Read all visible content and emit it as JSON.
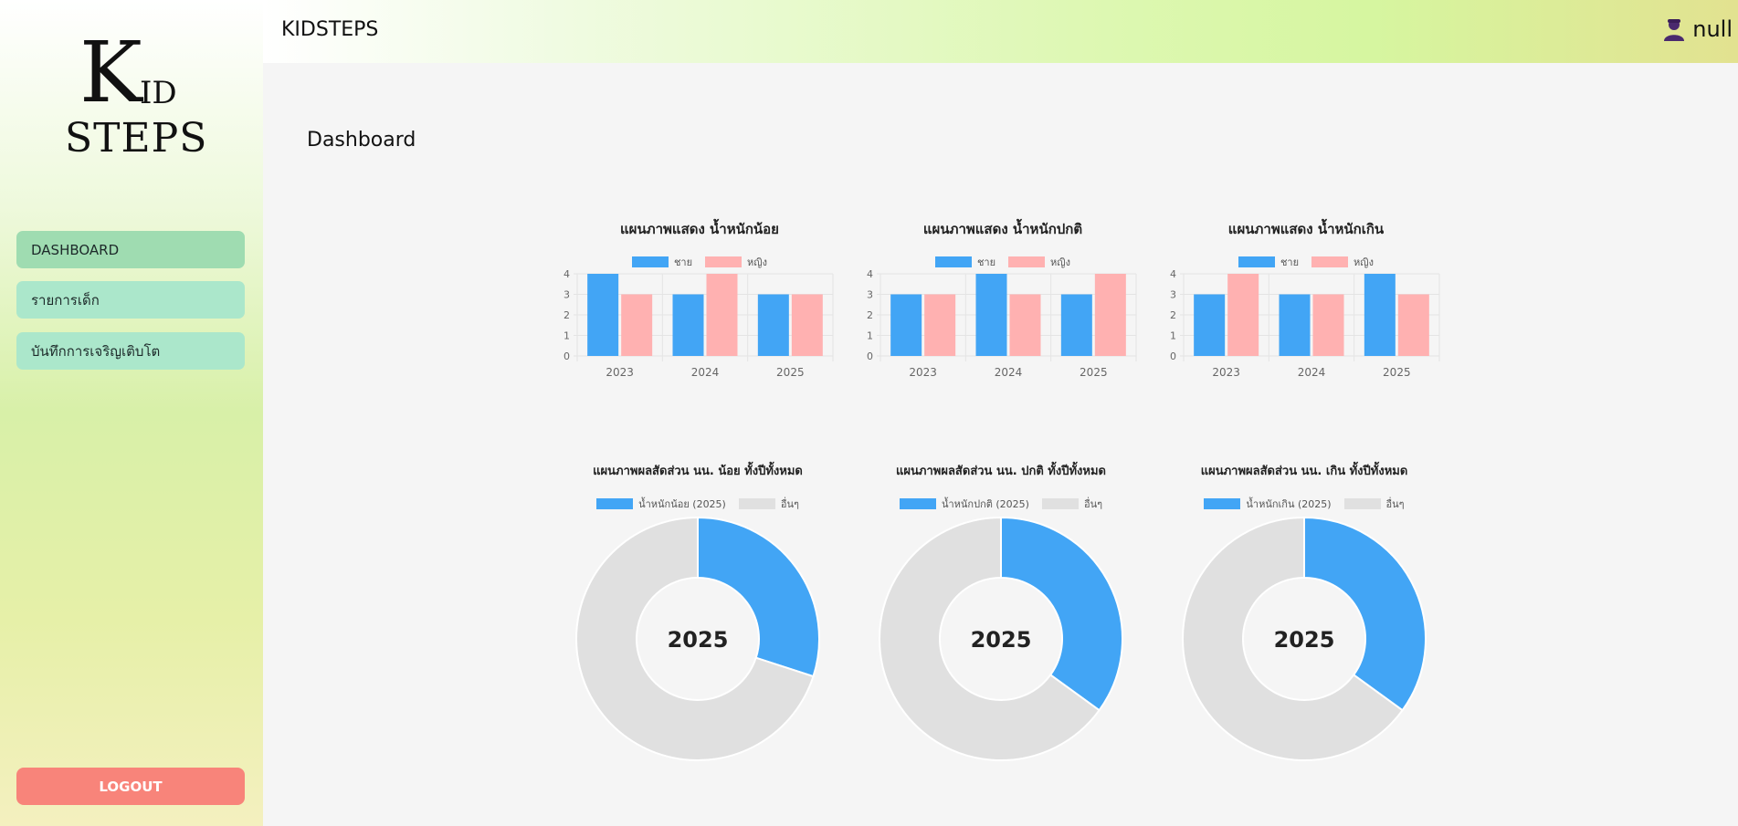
{
  "sidebar": {
    "logo": {
      "line1_big": "K",
      "line1_small": "ID",
      "line2": "STEPS"
    },
    "items": [
      {
        "label": "DASHBOARD",
        "active": true
      },
      {
        "label": "รายการเด็ก",
        "active": false
      },
      {
        "label": "บันทึกการเจริญเติบโต",
        "active": false
      }
    ],
    "logout_label": "LOGOUT"
  },
  "header": {
    "brand": "KIDSTEPS",
    "user_icon": "user-icon",
    "username": "null"
  },
  "main": {
    "title": "Dashboard"
  },
  "colors": {
    "blue": "#42a5f5",
    "pink": "#ffb1b1",
    "grey": "#e0e0e0"
  },
  "chart_data": [
    {
      "type": "bar",
      "title": "แผนภาพแสดง น้ำหนักน้อย",
      "categories": [
        "2023",
        "2024",
        "2025"
      ],
      "series": [
        {
          "name": "ชาย",
          "values": [
            4,
            3,
            3
          ]
        },
        {
          "name": "หญิง",
          "values": [
            3,
            4,
            3
          ]
        }
      ],
      "ylim": [
        0,
        4
      ],
      "yticks": [
        "0",
        "1",
        "2",
        "3",
        "4"
      ],
      "legend": "top"
    },
    {
      "type": "bar",
      "title": "แผนภาพแสดง น้ำหนักปกติ",
      "categories": [
        "2023",
        "2024",
        "2025"
      ],
      "series": [
        {
          "name": "ชาย",
          "values": [
            3,
            4,
            3
          ]
        },
        {
          "name": "หญิง",
          "values": [
            3,
            3,
            4
          ]
        }
      ],
      "ylim": [
        0,
        4
      ],
      "yticks": [
        "0",
        "1",
        "2",
        "3",
        "4"
      ],
      "legend": "top"
    },
    {
      "type": "bar",
      "title": "แผนภาพแสดง น้ำหนักเกิน",
      "categories": [
        "2023",
        "2024",
        "2025"
      ],
      "series": [
        {
          "name": "ชาย",
          "values": [
            3,
            3,
            4
          ]
        },
        {
          "name": "หญิง",
          "values": [
            4,
            3,
            3
          ]
        }
      ],
      "ylim": [
        0,
        4
      ],
      "yticks": [
        "0",
        "1",
        "2",
        "3",
        "4"
      ],
      "legend": "top"
    },
    {
      "type": "pie",
      "title": "แผนภาพผลสัดส่วน นน. น้อย ทั้งปีทั้งหมด",
      "center_label": "2025",
      "slices": [
        {
          "name": "น้ำหนักน้อย (2025)",
          "value": 0.3
        },
        {
          "name": "อื่นๆ",
          "value": 0.7
        }
      ],
      "legend": "top"
    },
    {
      "type": "pie",
      "title": "แผนภาพผลสัดส่วน นน. ปกติ ทั้งปีทั้งหมด",
      "center_label": "2025",
      "slices": [
        {
          "name": "น้ำหนักปกติ (2025)",
          "value": 0.35
        },
        {
          "name": "อื่นๆ",
          "value": 0.65
        }
      ],
      "legend": "top"
    },
    {
      "type": "pie",
      "title": "แผนภาพผลสัดส่วน นน. เกิน ทั้งปีทั้งหมด",
      "center_label": "2025",
      "slices": [
        {
          "name": "น้ำหนักเกิน (2025)",
          "value": 0.35
        },
        {
          "name": "อื่นๆ",
          "value": 0.65
        }
      ],
      "legend": "top"
    }
  ]
}
